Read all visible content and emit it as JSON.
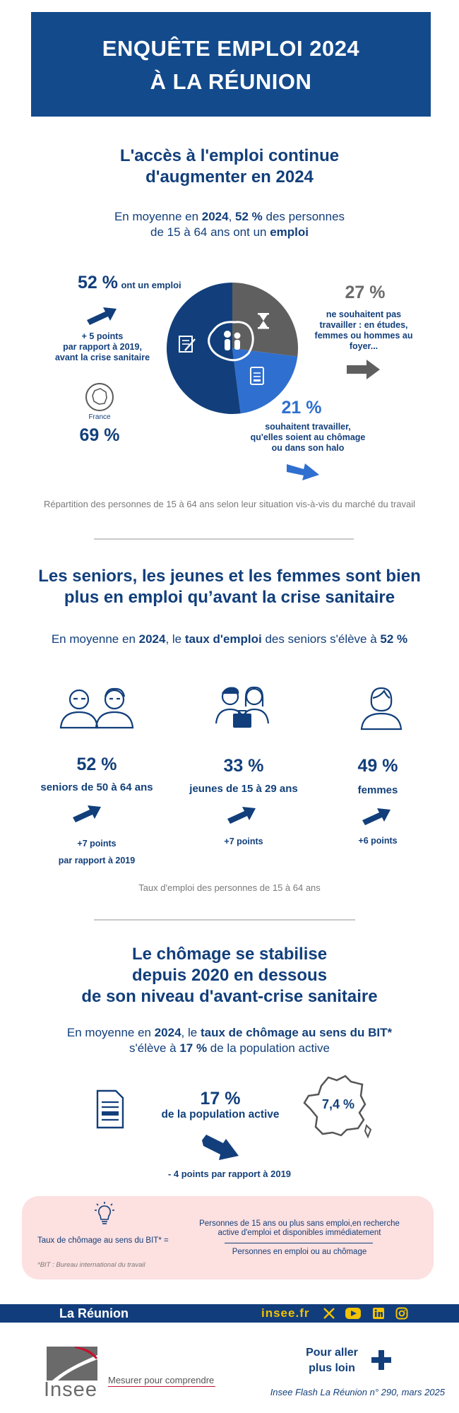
{
  "title": {
    "line1": "ENQUÊTE EMPLOI 2024",
    "line2": "À LA RÉUNION"
  },
  "section1": {
    "heading_line1": "L'accès à l'emploi continue",
    "heading_line2": "d'augmenter en 2024",
    "lead_line1_pre": "En moyenne en ",
    "lead_year": "2024",
    "lead_mid": ", ",
    "lead_pct": "52 %",
    "lead_line1_post": " des personnes",
    "lead_line2_pre": "de 15 à 64 ans ont un ",
    "lead_emploi": "emploi",
    "emploi_pct": "52 %",
    "emploi_label": "ont un emploi",
    "emploi_change_line1": "+ 5 points",
    "emploi_change_line2": "par rapport à 2019,",
    "emploi_change_line3": "avant la crise sanitaire",
    "france_label": "France",
    "france_pct": "69 %",
    "not_wanting_pct": "27 %",
    "not_wanting_line1": "ne souhaitent pas",
    "not_wanting_line2": "travailler : en études,",
    "not_wanting_line3": "femmes ou hommes au",
    "not_wanting_line4": "foyer...",
    "wanting_pct": "21 %",
    "wanting_line1": "souhaitent travailler,",
    "wanting_line2": "qu'elles soient au chômage",
    "wanting_line3": "ou dans son halo",
    "caption": "Répartition des personnes de 15 à 64 ans selon leur situation vis-à-vis du marché du travail"
  },
  "pie_data": {
    "slices": [
      {
        "name": "ont un emploi",
        "value": 52,
        "color": "#123f7b"
      },
      {
        "name": "ne souhaitent pas travailler",
        "value": 27,
        "color": "#5f5f5f"
      },
      {
        "name": "souhaitent travailler",
        "value": 21,
        "color": "#2f6fcf"
      }
    ]
  },
  "section2": {
    "heading_line1": "Les seniors, les jeunes et les femmes sont bien",
    "heading_line2": "plus en emploi qu’avant la crise sanitaire",
    "lead_pre": "En moyenne en ",
    "lead_year": "2024",
    "lead_mid": ", le ",
    "lead_bold": "taux d'emploi",
    "lead_post": " des seniors s'élève à ",
    "lead_pct": "52 %",
    "groups": [
      {
        "pct": "52 %",
        "label": "seniors de 50 à 64 ans",
        "change": "+7 points",
        "change2": "par rapport à 2019"
      },
      {
        "pct": "33 %",
        "label": "jeunes de 15 à 29 ans",
        "change": "+7 points",
        "change2": ""
      },
      {
        "pct": "49 %",
        "label": "femmes",
        "change": "+6 points",
        "change2": ""
      }
    ],
    "caption": "Taux d'emploi des personnes de 15 à 64 ans"
  },
  "section3": {
    "heading_line1": "Le chômage se stabilise",
    "heading_line2": "depuis 2020 en dessous",
    "heading_line3": "de son niveau d'avant-crise sanitaire",
    "lead_pre": "En moyenne en ",
    "lead_year": "2024",
    "lead_mid": ", le ",
    "lead_bold": "taux de chômage au sens du BIT*",
    "lead2_pre": "s'élève à ",
    "lead2_pct": "17 %",
    "lead2_post": " de la population active",
    "pct": "17 %",
    "pct_label": "de la population active",
    "france_pct": "7,4 %",
    "change": "- 4 points par rapport à 2019"
  },
  "formula": {
    "left_label": "Taux de chômage au sens du BIT* =",
    "numerator_line1": "Personnes de 15 ans ou plus sans emploi,en recherche",
    "numerator_line2": "active d'emploi et disponibles immédiatement",
    "denominator": "Personnes en emploi ou au chômage",
    "footnote": "*BIT : Bureau international du travail"
  },
  "footer": {
    "region": "La Réunion",
    "site": "insee.fr",
    "social_icons": [
      "x-icon",
      "youtube-icon",
      "linkedin-icon",
      "instagram-icon"
    ],
    "logo_text": "Insee",
    "slogan": "Mesurer pour comprendre",
    "more_line1": "Pour aller",
    "more_line2": "plus loin",
    "publication": "Insee Flash La Réunion n° 290, mars 2025"
  }
}
